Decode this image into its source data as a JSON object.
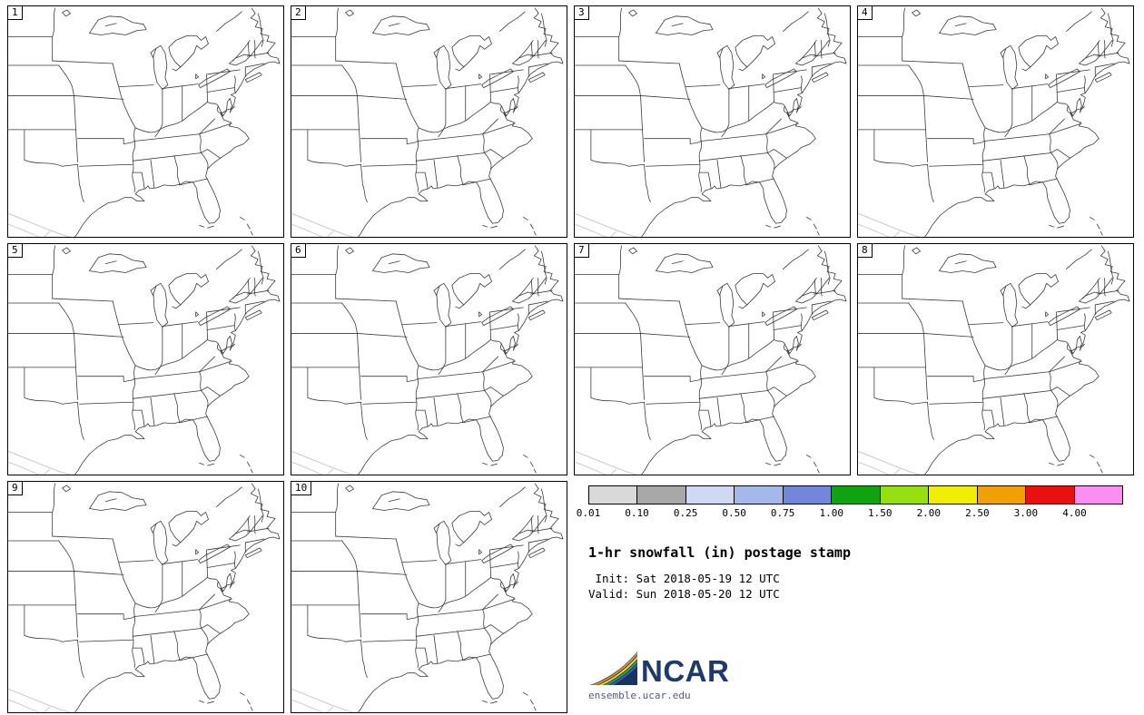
{
  "figure": {
    "title": "1-hr snowfall (in) postage stamp",
    "init_line": " Init: Sat 2018-05-19 12 UTC",
    "valid_line": "Valid: Sun 2018-05-20 12 UTC",
    "logo_text": "NCAR",
    "footer_url": "ensemble.ucar.edu"
  },
  "panels": [
    {
      "label": "1"
    },
    {
      "label": "2"
    },
    {
      "label": "3"
    },
    {
      "label": "4"
    },
    {
      "label": "5"
    },
    {
      "label": "6"
    },
    {
      "label": "7"
    },
    {
      "label": "8"
    },
    {
      "label": "9"
    },
    {
      "label": "10"
    }
  ],
  "colorbar": {
    "ticks": [
      "0.01",
      "0.10",
      "0.25",
      "0.50",
      "0.75",
      "1.00",
      "1.50",
      "2.00",
      "2.50",
      "3.00",
      "4.00"
    ],
    "segments": [
      {
        "range": "0.01-0.10",
        "color": "#d9d9d9"
      },
      {
        "range": "0.10-0.25",
        "color": "#a8a8a8"
      },
      {
        "range": "0.25-0.50",
        "color": "#cfd9f3"
      },
      {
        "range": "0.50-0.75",
        "color": "#a4b8ea"
      },
      {
        "range": "0.75-1.00",
        "color": "#7287da"
      },
      {
        "range": "1.00-1.50",
        "color": "#0fa30f"
      },
      {
        "range": "1.50-2.00",
        "color": "#97e010"
      },
      {
        "range": "2.00-2.50",
        "color": "#f2ee00"
      },
      {
        "range": "2.50-3.00",
        "color": "#f0a000"
      },
      {
        "range": "3.00-4.00",
        "color": "#e81010"
      },
      {
        "range": ">4.00",
        "color": "#fa8ef2"
      }
    ]
  }
}
